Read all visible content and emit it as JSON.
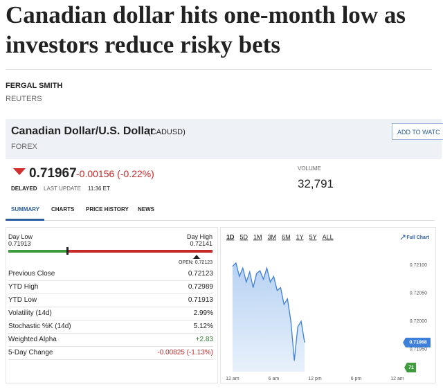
{
  "article": {
    "title": "Canadian dollar hits one-month low as investors reduce risky bets",
    "author": "FERGAL SMITH",
    "source": "REUTERS"
  },
  "quote": {
    "name": "Canadian Dollar/U.S. Dollar",
    "symbol": "(CADUSD)",
    "category": "FOREX",
    "button": "ADD TO WATC",
    "price": "0.71967",
    "change": "-0.00156 (-0.22%)",
    "status": "DELAYED",
    "update_label": "LAST UPDATE",
    "update_time": "11:36 ET",
    "volume_label": "VOLUME",
    "volume": "32,791"
  },
  "tabs": [
    "SUMMARY",
    "CHARTS",
    "PRICE HISTORY",
    "NEWS"
  ],
  "summary": {
    "day_low_label": "Day Low",
    "day_low": "0.71913",
    "day_high_label": "Day High",
    "day_high": "0.72141",
    "open": "OPEN: 0.72123",
    "rows": [
      [
        "Previous Close",
        "0.72123"
      ],
      [
        "YTD High",
        "0.72989"
      ],
      [
        "YTD Low",
        "0.71913"
      ],
      [
        "Volatility (14d)",
        "2.99%"
      ],
      [
        "Stochastic %K (14d)",
        "5.12%"
      ],
      [
        "Weighted Alpha",
        "+2.83"
      ],
      [
        "5-Day Change",
        "-0.00825 (-1.13%)"
      ]
    ]
  },
  "chart_data": {
    "type": "line",
    "ranges": [
      "1D",
      "5D",
      "1M",
      "3M",
      "6M",
      "1Y",
      "5Y",
      "ALL"
    ],
    "full_chart": "Full Chart",
    "x": [
      0,
      0.5,
      1,
      1.5,
      2,
      2.5,
      3,
      3.5,
      4,
      4.5,
      5,
      5.5,
      6,
      6.5,
      7,
      7.5,
      8,
      8.5,
      9,
      9.5,
      10,
      10.5
    ],
    "series": [
      {
        "color": "#3d7fd9",
        "values": [
          0.72098,
          0.72104,
          0.7208,
          0.72095,
          0.7207,
          0.72088,
          0.7206,
          0.72085,
          0.7209,
          0.72075,
          0.72095,
          0.7207,
          0.7208,
          0.72055,
          0.7206,
          0.7203,
          0.7204,
          0.72,
          0.7193,
          0.7199,
          0.72,
          0.71962
        ]
      }
    ],
    "xlim": [
      -1,
      24
    ],
    "xticks": [
      {
        "value": 0,
        "label": "12 am"
      },
      {
        "value": 6,
        "label": "6 am"
      },
      {
        "value": 12,
        "label": "12 pm"
      },
      {
        "value": 18,
        "label": "6 pm"
      },
      {
        "value": 24,
        "label": "12 am"
      }
    ],
    "ylim": [
      0.7191,
      0.72115
    ],
    "yticks": [
      {
        "value": 0.721,
        "label": "0.72100"
      },
      {
        "value": 0.7205,
        "label": "0.72050"
      },
      {
        "value": 0.72,
        "label": "0.72000"
      },
      {
        "value": 0.7195,
        "label": "0.71950"
      }
    ],
    "last_price_label": "0.71968",
    "volume_badge": "71"
  }
}
